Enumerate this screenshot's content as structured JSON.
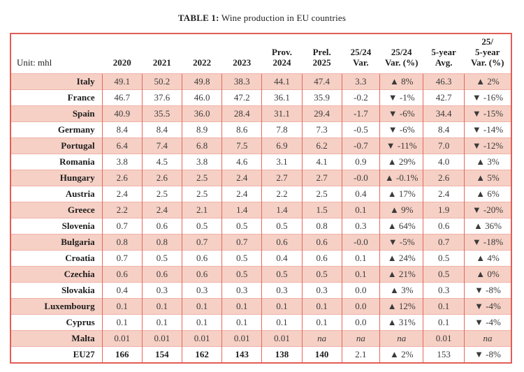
{
  "title": {
    "label": "TABLE 1:",
    "text": "Wine production in EU countries"
  },
  "theme": {
    "row_shade": "#f6d0c5",
    "frame_red": "#e25d56",
    "grid_vertical": "#e5685e",
    "grid_horizontal": "#f0b2a8",
    "up_arrow_glyph": "▲",
    "down_arrow_glyph": "▼"
  },
  "table": {
    "unit_label": "Unit: mhl",
    "columns": [
      "2020",
      "2021",
      "2022",
      "2023",
      "Prov.\n2024",
      "Prel.\n2025",
      "25/24\nVar.",
      "25/24\nVar. (%)",
      "5-year\nAvg.",
      "25/\n5-year\nVar. (%)"
    ],
    "rows": [
      {
        "country": "Italy",
        "cells": [
          "49.1",
          "50.2",
          "49.8",
          "38.3",
          "44.1",
          "47.4",
          "3.3",
          "▲ 8%",
          "46.3",
          "▲ 2%"
        ],
        "shaded": true
      },
      {
        "country": "France",
        "cells": [
          "46.7",
          "37.6",
          "46.0",
          "47.2",
          "36.1",
          "35.9",
          "-0.2",
          "▼ -1%",
          "42.7",
          "▼ -16%"
        ],
        "shaded": false
      },
      {
        "country": "Spain",
        "cells": [
          "40.9",
          "35.5",
          "36.0",
          "28.4",
          "31.1",
          "29.4",
          "-1.7",
          "▼ -6%",
          "34.4",
          "▼ -15%"
        ],
        "shaded": true
      },
      {
        "country": "Germany",
        "cells": [
          "8.4",
          "8.4",
          "8.9",
          "8.6",
          "7.8",
          "7.3",
          "-0.5",
          "▼ -6%",
          "8.4",
          "▼ -14%"
        ],
        "shaded": false
      },
      {
        "country": "Portugal",
        "cells": [
          "6.4",
          "7.4",
          "6.8",
          "7.5",
          "6.9",
          "6.2",
          "-0.7",
          "▼ -11%",
          "7.0",
          "▼ -12%"
        ],
        "shaded": true
      },
      {
        "country": "Romania",
        "cells": [
          "3.8",
          "4.5",
          "3.8",
          "4.6",
          "3.1",
          "4.1",
          "0.9",
          "▲ 29%",
          "4.0",
          "▲ 3%"
        ],
        "shaded": false
      },
      {
        "country": "Hungary",
        "cells": [
          "2.6",
          "2.6",
          "2.5",
          "2.4",
          "2.7",
          "2.7",
          "-0.0",
          "▲ -0.1%",
          "2.6",
          "▲ 5%"
        ],
        "shaded": true
      },
      {
        "country": "Austria",
        "cells": [
          "2.4",
          "2.5",
          "2.5",
          "2.4",
          "2.2",
          "2.5",
          "0.4",
          "▲ 17%",
          "2.4",
          "▲ 6%"
        ],
        "shaded": false
      },
      {
        "country": "Greece",
        "cells": [
          "2.2",
          "2.4",
          "2.1",
          "1.4",
          "1.4",
          "1.5",
          "0.1",
          "▲ 9%",
          "1.9",
          "▼ -20%"
        ],
        "shaded": true
      },
      {
        "country": "Slovenia",
        "cells": [
          "0.7",
          "0.6",
          "0.5",
          "0.5",
          "0.5",
          "0.8",
          "0.3",
          "▲ 64%",
          "0.6",
          "▲ 36%"
        ],
        "shaded": false
      },
      {
        "country": "Bulgaria",
        "cells": [
          "0.8",
          "0.8",
          "0.7",
          "0.7",
          "0.6",
          "0.6",
          "-0.0",
          "▼ -5%",
          "0.7",
          "▼ -18%"
        ],
        "shaded": true
      },
      {
        "country": "Croatia",
        "cells": [
          "0.7",
          "0.5",
          "0.6",
          "0.5",
          "0.4",
          "0.6",
          "0.1",
          "▲ 24%",
          "0.5",
          "▲ 4%"
        ],
        "shaded": false
      },
      {
        "country": "Czechia",
        "cells": [
          "0.6",
          "0.6",
          "0.6",
          "0.5",
          "0.5",
          "0.5",
          "0.1",
          "▲ 21%",
          "0.5",
          "▲ 0%"
        ],
        "shaded": true
      },
      {
        "country": "Slovakia",
        "cells": [
          "0.4",
          "0.3",
          "0.3",
          "0.3",
          "0.3",
          "0.3",
          "0.0",
          "▲ 3%",
          "0.3",
          "▼ -8%"
        ],
        "shaded": false
      },
      {
        "country": "Luxembourg",
        "cells": [
          "0.1",
          "0.1",
          "0.1",
          "0.1",
          "0.1",
          "0.1",
          "0.0",
          "▲ 12%",
          "0.1",
          "▼ -4%"
        ],
        "shaded": true
      },
      {
        "country": "Cyprus",
        "cells": [
          "0.1",
          "0.1",
          "0.1",
          "0.1",
          "0.1",
          "0.1",
          "0.0",
          "▲ 31%",
          "0.1",
          "▼ -4%"
        ],
        "shaded": false
      },
      {
        "country": "Malta",
        "cells": [
          "0.01",
          "0.01",
          "0.01",
          "0.01",
          "0.01",
          "na",
          "na",
          "na",
          "0.01",
          "na"
        ],
        "shaded": true
      },
      {
        "country": "EU27",
        "cells": [
          "166",
          "154",
          "162",
          "143",
          "138",
          "140",
          "2.1",
          "▲ 2%",
          "153",
          "▼ -8%"
        ],
        "shaded": false,
        "bold_upto": 6
      }
    ]
  }
}
